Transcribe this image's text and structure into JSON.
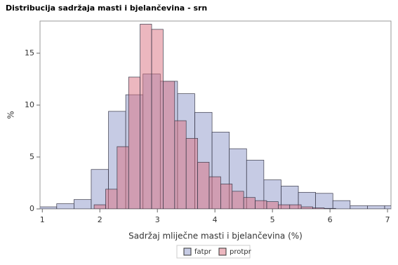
{
  "chart_data": {
    "type": "histogram",
    "title": "Distribucija sadržaja masti i bjelančevina - srn",
    "x_label": "Sadržaj mliječne masti i bjelančevina (%)",
    "y_label": "%",
    "xlim": [
      0.96,
      7.06
    ],
    "ylim": [
      0,
      18.1
    ],
    "xticks": [
      1,
      2,
      3,
      4,
      5,
      6,
      7
    ],
    "yticks": [
      0,
      5,
      10,
      15
    ],
    "legend": "bottom",
    "series": [
      {
        "name": "fatpr",
        "color": "#8d98c9",
        "bins": [
          0.95,
          1.25,
          1.55,
          1.85,
          2.15,
          2.45,
          2.75,
          3.05,
          3.35,
          3.65,
          3.95,
          4.25,
          4.55,
          4.85,
          5.15,
          5.45,
          5.75,
          6.05,
          6.35,
          6.65,
          6.95,
          7.25
        ],
        "values": [
          0.2,
          0.5,
          0.9,
          3.8,
          9.4,
          11.0,
          13.0,
          12.3,
          11.1,
          9.3,
          7.4,
          5.8,
          4.7,
          2.8,
          2.2,
          1.6,
          1.5,
          0.8,
          0.3,
          0.3,
          0.3
        ]
      },
      {
        "name": "protpr",
        "color": "#d9707f",
        "bins": [
          1.9,
          2.1,
          2.3,
          2.5,
          2.7,
          2.9,
          3.1,
          3.3,
          3.5,
          3.7,
          3.9,
          4.1,
          4.3,
          4.5,
          4.7,
          4.9,
          5.1,
          5.3,
          5.5,
          5.7,
          5.9,
          6.1
        ],
        "values": [
          0.4,
          1.9,
          6.0,
          12.7,
          17.8,
          17.3,
          12.3,
          8.5,
          6.8,
          4.5,
          3.1,
          2.4,
          1.7,
          1.1,
          0.8,
          0.7,
          0.4,
          0.4,
          0.2,
          0.1,
          0.05
        ]
      }
    ]
  }
}
